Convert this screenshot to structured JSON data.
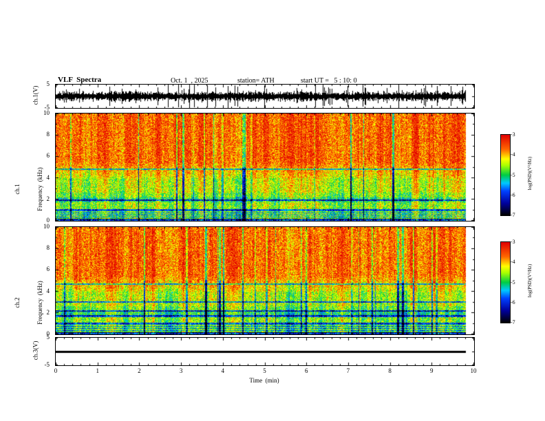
{
  "header": {
    "title": "VLF  Spectra",
    "date": "Oct. 1  , 2025",
    "station": "station= ATH",
    "start_ut": "start UT =   5 : 10: 0"
  },
  "axes": {
    "x_label": "Time  (min)",
    "x_ticks": [
      0,
      1,
      2,
      3,
      4,
      5,
      6,
      7,
      8,
      9,
      10
    ],
    "freq_ticks": [
      10,
      8,
      6,
      4,
      2,
      0
    ],
    "volt_ticks": [
      5,
      -5
    ],
    "panel1_ylabel": "ch.1(V)",
    "panel2_ylabel_line1": "ch.1",
    "panel2_ylabel_line2": "Frequency  (kHz)",
    "panel3_ylabel_line1": "ch.2",
    "panel3_ylabel_line2": "Frequency  (kHz)",
    "panel4_ylabel": "ch.3(V)"
  },
  "colorbar": {
    "label": "log(PSD)(V²/Hz)",
    "ticks": [
      -3,
      -4,
      -5,
      -6,
      -7
    ]
  },
  "chart_data": {
    "type": "heatmap",
    "title": "VLF Spectra",
    "date": "Oct. 1, 2025",
    "station": "ATH",
    "start_ut": "5:10:0",
    "xlabel": "Time (min)",
    "x_range_min": [
      0,
      10
    ],
    "data_end_min": 9.8,
    "panels": [
      {
        "name": "ch1-waveform",
        "ylabel": "ch.1(V)",
        "y_range": [
          -5,
          5
        ],
        "signal": "dense broadband noise band of ~±2 V with frequent spikes reaching ±5 V across 0–9.8 min"
      },
      {
        "name": "ch1-spectrogram",
        "ylabel": "ch.1 Frequency (kHz)",
        "y_range_khz": [
          0,
          10
        ],
        "colorscale_range": [
          -7,
          -3
        ],
        "features": "red/orange PSD above ~5 kHz, yellow-green 2.5–5 kHz, cyan-green band near 2 kHz, darker striped rows below 1 kHz, narrow vertical blue dropouts (strongest near 4.45 min)",
        "harmonic_lines_khz": [
          1.0,
          1.9,
          4.8
        ],
        "dropout_min": [
          4.45
        ]
      },
      {
        "name": "ch2-spectrogram",
        "ylabel": "ch.2 Frequency (kHz)",
        "y_range_khz": [
          0,
          10
        ],
        "colorscale_range": [
          -7,
          -3
        ],
        "features": "same structure as ch.1 with dark horizontal harmonic lines near 1, 1.7, 2.2, 3 and 4.7 kHz",
        "harmonic_lines_khz": [
          1.0,
          1.7,
          2.2,
          3.0,
          4.7
        ],
        "dropout_min": [
          4.45
        ]
      },
      {
        "name": "ch3-waveform",
        "ylabel": "ch.3(V)",
        "y_range": [
          -5,
          5
        ],
        "signal": "flat constant line at 0 V"
      }
    ],
    "colorbar": {
      "label": "log(PSD)(V²/Hz)",
      "range": [
        -7,
        -3
      ],
      "ticks": [
        -3,
        -4,
        -5,
        -6,
        -7
      ]
    },
    "colormap_stops": [
      {
        "t": 0.0,
        "c": "#000000"
      },
      {
        "t": 0.15,
        "c": "#00009c"
      },
      {
        "t": 0.3,
        "c": "#0040ff"
      },
      {
        "t": 0.4,
        "c": "#00c8ff"
      },
      {
        "t": 0.5,
        "c": "#00cc44"
      },
      {
        "t": 0.62,
        "c": "#aaff00"
      },
      {
        "t": 0.7,
        "c": "#ffff00"
      },
      {
        "t": 0.82,
        "c": "#ff6600"
      },
      {
        "t": 1.0,
        "c": "#e00000"
      }
    ]
  }
}
